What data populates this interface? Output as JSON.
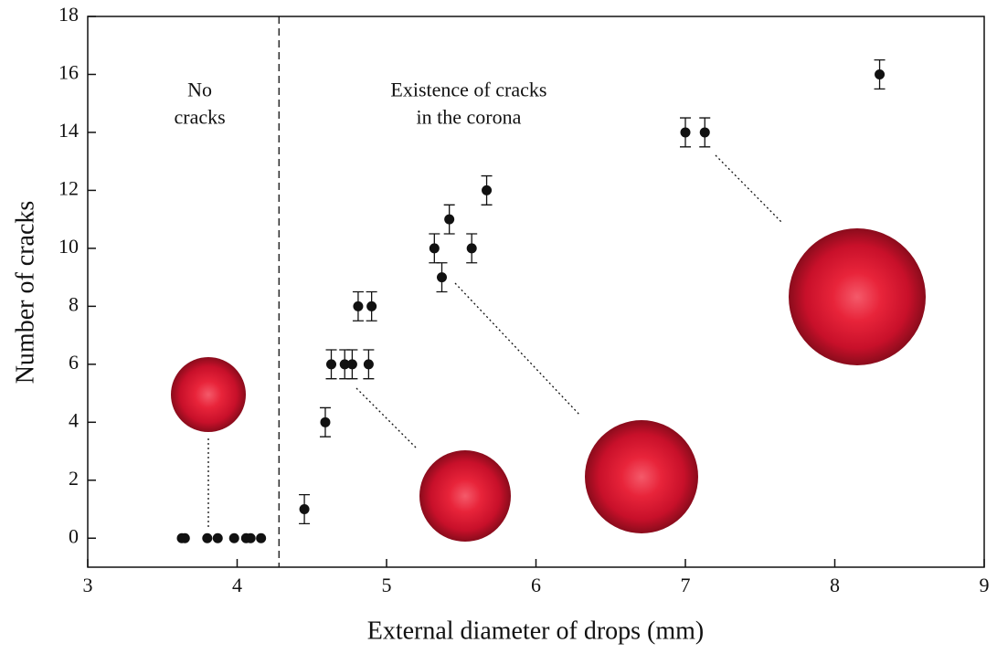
{
  "chart_data": {
    "type": "scatter",
    "x_label": "External diameter of drops (mm)",
    "y_label": "Number of cracks",
    "xlim": [
      3,
      9
    ],
    "xticks": [
      3,
      4,
      5,
      6,
      7,
      8,
      9
    ],
    "ylim": [
      -1,
      18
    ],
    "yticks": [
      0,
      2,
      4,
      6,
      8,
      10,
      12,
      14,
      16,
      18
    ],
    "color": "#111111",
    "x": [
      3.63,
      3.65,
      3.8,
      3.87,
      3.98,
      4.06,
      4.09,
      4.16,
      4.45,
      4.59,
      4.63,
      4.72,
      4.77,
      4.88,
      4.81,
      4.9,
      5.32,
      5.37,
      5.42,
      5.57,
      5.67,
      7.0,
      7.13,
      8.3
    ],
    "values": [
      0,
      0,
      0,
      0,
      0,
      0,
      0,
      0,
      1,
      4,
      6,
      6,
      6,
      6,
      8,
      8,
      10,
      9,
      11,
      10,
      12,
      14,
      14,
      16
    ],
    "errors": [
      null,
      null,
      null,
      null,
      null,
      null,
      null,
      null,
      0.5,
      0.5,
      0.5,
      0.5,
      0.5,
      0.5,
      0.5,
      0.5,
      0.5,
      0.5,
      0.5,
      0.5,
      0.5,
      0.5,
      0.5,
      0.5
    ],
    "threshold_x": 4.28,
    "annotations": [
      {
        "lines": [
          "No",
          "cracks"
        ],
        "x": 3.75,
        "y": 15.4
      },
      {
        "lines": [
          "Existence of cracks",
          "in the corona"
        ],
        "x": 5.55,
        "y": 15.4
      }
    ]
  }
}
